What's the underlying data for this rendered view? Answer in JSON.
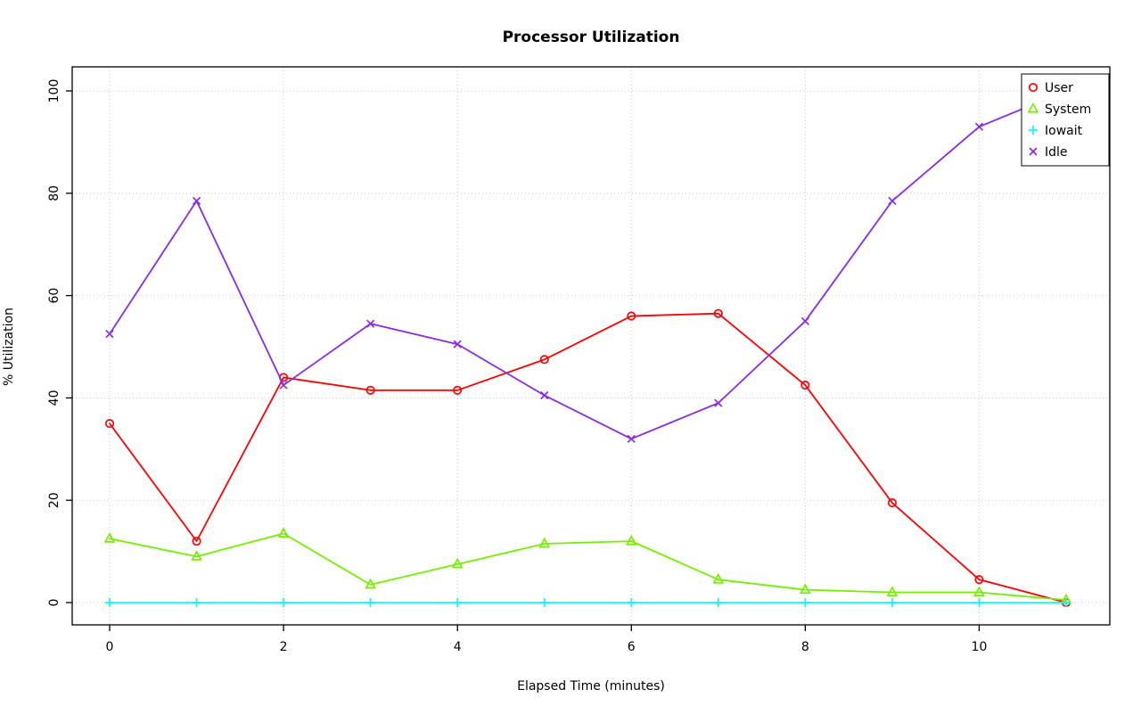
{
  "chart_data": {
    "type": "line",
    "title": "Processor Utilization",
    "xlabel": "Elapsed Time (minutes)",
    "ylabel": "% Utilization",
    "xlim": [
      0,
      11
    ],
    "ylim": [
      0,
      100
    ],
    "xticks": [
      0,
      2,
      4,
      6,
      8,
      10
    ],
    "yticks": [
      0,
      20,
      40,
      60,
      80,
      100
    ],
    "grid": true,
    "grid_style": "dotted",
    "grid_color": "#c8c8c8",
    "legend_position": "top-right",
    "x": [
      0,
      1,
      2,
      3,
      4,
      5,
      6,
      7,
      8,
      9,
      10,
      11
    ],
    "series": [
      {
        "name": "User",
        "color": "#ff0000",
        "marker": "circle",
        "values": [
          35,
          12,
          44,
          41.5,
          41.5,
          47.5,
          56,
          56.5,
          42.5,
          19.5,
          4.5,
          0
        ]
      },
      {
        "name": "System",
        "color": "#76ee00",
        "marker": "triangle",
        "values": [
          12.5,
          9,
          13.5,
          3.5,
          7.5,
          11.5,
          12,
          4.5,
          2.5,
          2,
          2,
          0.5
        ]
      },
      {
        "name": "Iowait",
        "color": "#00ffff",
        "marker": "plus",
        "values": [
          0,
          0,
          0,
          0,
          0,
          0,
          0,
          0,
          0,
          0,
          0,
          0
        ]
      },
      {
        "name": "Idle",
        "color": "#8a2be2",
        "marker": "x",
        "values": [
          52.5,
          78.5,
          42.5,
          54.5,
          50.5,
          40.5,
          32,
          39,
          55,
          78.5,
          93,
          100
        ]
      }
    ]
  }
}
